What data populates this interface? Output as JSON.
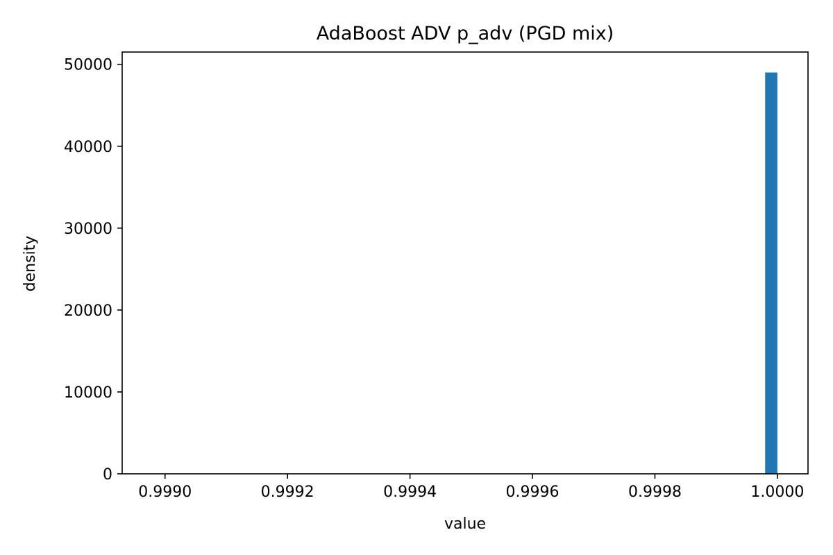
{
  "chart_data": {
    "type": "bar",
    "title": "AdaBoost ADV p_adv (PGD mix)",
    "xlabel": "value",
    "ylabel": "density",
    "xlim": [
      0.99893,
      1.00005
    ],
    "ylim": [
      0,
      51500
    ],
    "xticks": [
      0.999,
      0.9992,
      0.9994,
      0.9996,
      0.9998,
      1.0
    ],
    "xtick_labels": [
      "0.9990",
      "0.9992",
      "0.9994",
      "0.9996",
      "0.9998",
      "1.0000"
    ],
    "yticks": [
      0,
      10000,
      20000,
      30000,
      40000,
      50000
    ],
    "ytick_labels": [
      "0",
      "10000",
      "20000",
      "30000",
      "40000",
      "50000"
    ],
    "bars": [
      {
        "x0": 0.99998,
        "x1": 1.0,
        "value": 49000
      }
    ],
    "bar_color": "#1f77b4",
    "grid": false,
    "legend": "none"
  }
}
